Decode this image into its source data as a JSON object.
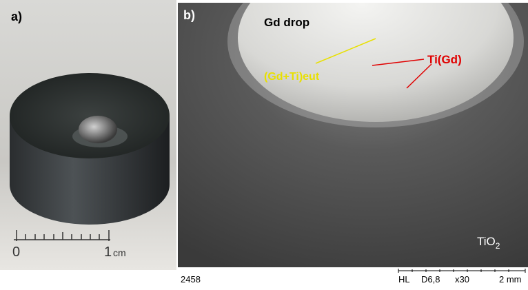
{
  "panel_a": {
    "label": "a)",
    "ruler": {
      "zero": "0",
      "one": "1",
      "unit": "cm"
    }
  },
  "panel_b": {
    "label": "b)",
    "annotations": {
      "gd_drop": "Gd drop",
      "eutectic": "(Gd+Ti)eut",
      "ti_gd": "Ti(Gd)",
      "tio2": {
        "base": "TiO",
        "sub": "2"
      }
    },
    "footer": {
      "id": "2458",
      "mode": "HL",
      "distance": "D6,8",
      "magnification": "x30",
      "scale": "2 mm"
    }
  }
}
